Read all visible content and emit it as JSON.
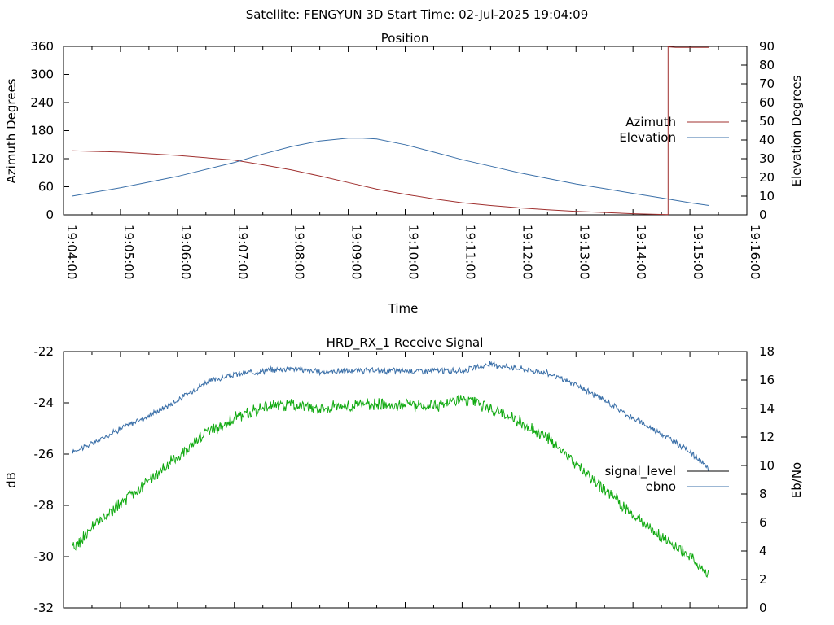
{
  "header": {
    "title": "Satellite: FENGYUN 3D    Start Time: 02-Jul-2025 19:04:09"
  },
  "colors": {
    "azimuth": "#a0302f",
    "elevation": "#3a6fa8",
    "signal_level": "#3a6fa8",
    "ebno": "#11aa11",
    "legend_signal_level": "#000000",
    "legend_ebno": "#3a6fa8"
  },
  "chart_data": [
    {
      "type": "line",
      "title": "Position",
      "xlabel": "Time",
      "ylabel": "Azimuth Degrees",
      "y2label": "Elevation Degrees",
      "xlim": [
        "19:04:00",
        "19:16:00"
      ],
      "ylim": [
        0,
        360
      ],
      "y2lim": [
        0,
        90
      ],
      "x_ticks": [
        "19:04:00",
        "19:05:00",
        "19:06:00",
        "19:07:00",
        "19:08:00",
        "19:09:00",
        "19:10:00",
        "19:11:00",
        "19:12:00",
        "19:13:00",
        "19:14:00",
        "19:15:00",
        "19:16:00"
      ],
      "y_ticks": [
        "0",
        "60",
        "120",
        "180",
        "240",
        "300",
        "360"
      ],
      "y2_ticks": [
        "0",
        "10",
        "20",
        "30",
        "40",
        "50",
        "60",
        "70",
        "80",
        "90"
      ],
      "legend_position": "right",
      "grid": false,
      "series": [
        {
          "name": "Azimuth",
          "axis": "y",
          "x": [
            "19:04:09",
            "19:05:00",
            "19:06:00",
            "19:07:00",
            "19:07:30",
            "19:08:00",
            "19:08:30",
            "19:09:00",
            "19:09:30",
            "19:10:00",
            "19:10:30",
            "19:11:00",
            "19:11:30",
            "19:12:00",
            "19:12:30",
            "19:13:00",
            "19:13:30",
            "19:14:00",
            "19:14:20",
            "19:14:37",
            "19:14:38",
            "19:14:45",
            "19:15:00",
            "19:15:20"
          ],
          "values": [
            137,
            134,
            127,
            117,
            107,
            96,
            83,
            69,
            55,
            44,
            34,
            26,
            20,
            15,
            11,
            7.5,
            5,
            2.5,
            1.2,
            0.3,
            359,
            358,
            358,
            358
          ]
        },
        {
          "name": "Elevation",
          "axis": "y2",
          "x": [
            "19:04:09",
            "19:05:00",
            "19:06:00",
            "19:07:00",
            "19:07:30",
            "19:08:00",
            "19:08:30",
            "19:09:00",
            "19:09:15",
            "19:09:30",
            "19:10:00",
            "19:10:30",
            "19:11:00",
            "19:11:30",
            "19:12:00",
            "19:12:30",
            "19:13:00",
            "19:13:30",
            "19:14:00",
            "19:14:30",
            "19:15:00",
            "19:15:20"
          ],
          "values": [
            10,
            14.5,
            20.5,
            28,
            32.5,
            36.5,
            39.5,
            41,
            41,
            40.5,
            37.5,
            33.5,
            29.5,
            26,
            22.5,
            19.5,
            16.5,
            14,
            11.5,
            9,
            6.5,
            5
          ]
        }
      ]
    },
    {
      "type": "line",
      "title": "HRD_RX_1 Receive Signal",
      "xlabel": "",
      "ylabel": "dB",
      "y2label": "Eb/No",
      "xlim": [
        "19:04:00",
        "19:16:00"
      ],
      "ylim": [
        -32,
        -22
      ],
      "y2lim": [
        0,
        18
      ],
      "y_ticks": [
        "-32",
        "-30",
        "-28",
        "-26",
        "-24",
        "-22"
      ],
      "y2_ticks": [
        "0",
        "2",
        "4",
        "6",
        "8",
        "10",
        "12",
        "14",
        "16",
        "18"
      ],
      "legend_position": "right",
      "grid": false,
      "series": [
        {
          "name": "signal_level",
          "axis": "y",
          "x": [
            "19:04:09",
            "19:04:30",
            "19:05:00",
            "19:05:30",
            "19:06:00",
            "19:06:30",
            "19:07:00",
            "19:07:30",
            "19:08:00",
            "19:08:30",
            "19:09:00",
            "19:09:30",
            "19:10:00",
            "19:10:30",
            "19:11:00",
            "19:11:30",
            "19:12:00",
            "19:12:30",
            "19:13:00",
            "19:13:30",
            "19:14:00",
            "19:14:30",
            "19:15:00",
            "19:15:20"
          ],
          "values": [
            -25.9,
            -25.6,
            -25.0,
            -24.5,
            -23.9,
            -23.2,
            -22.9,
            -22.75,
            -22.65,
            -22.8,
            -22.75,
            -22.75,
            -22.75,
            -22.75,
            -22.75,
            -22.5,
            -22.65,
            -22.85,
            -23.3,
            -23.9,
            -24.6,
            -25.2,
            -25.9,
            -26.6
          ]
        },
        {
          "name": "ebno",
          "axis": "y2",
          "x": [
            "19:04:09",
            "19:04:30",
            "19:05:00",
            "19:05:30",
            "19:06:00",
            "19:06:30",
            "19:07:00",
            "19:07:30",
            "19:08:00",
            "19:08:30",
            "19:09:00",
            "19:09:30",
            "19:10:00",
            "19:10:30",
            "19:11:00",
            "19:11:30",
            "19:12:00",
            "19:12:30",
            "19:13:00",
            "19:13:30",
            "19:14:00",
            "19:14:30",
            "19:15:00",
            "19:15:20"
          ],
          "values": [
            4.1,
            5.6,
            7.3,
            8.9,
            10.6,
            12.3,
            13.3,
            14.1,
            14.3,
            14.0,
            14.2,
            14.3,
            14.3,
            14.2,
            14.6,
            14.0,
            13.1,
            11.9,
            10.2,
            8.3,
            6.5,
            5.0,
            3.6,
            2.3
          ]
        }
      ]
    }
  ]
}
